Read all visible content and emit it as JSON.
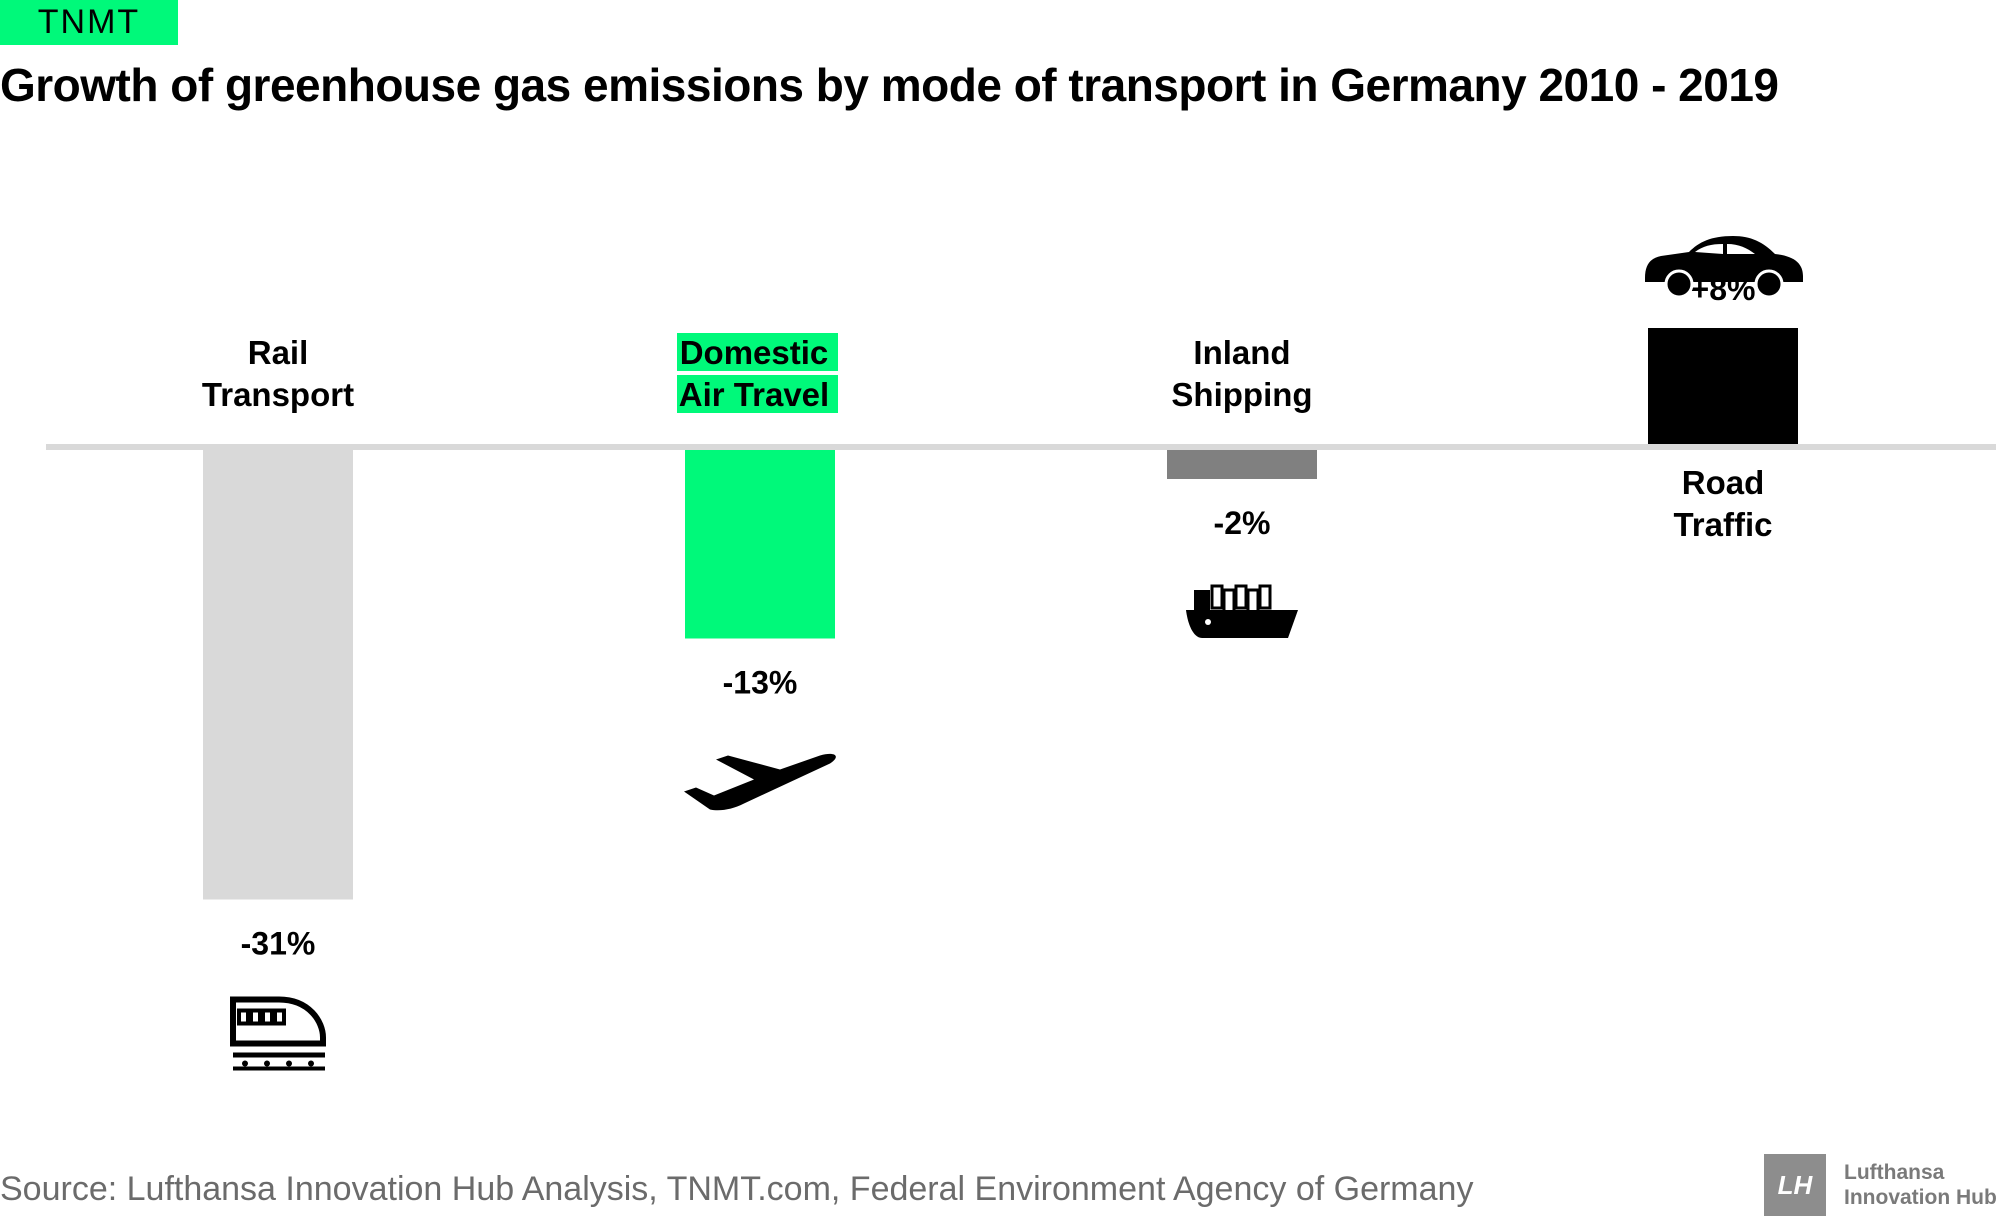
{
  "logo": {
    "text": "TNMT",
    "color": "#00f97a"
  },
  "title": "Growth of greenhouse gas emissions by mode of transport in Germany 2010 - 2019",
  "chart_data": {
    "type": "bar",
    "title": "Growth of greenhouse gas emissions by mode of transport in Germany 2010 - 2019",
    "unit": "%",
    "categories": [
      [
        "Rail",
        "Transport"
      ],
      [
        "Domestic",
        "Air Travel"
      ],
      [
        "Inland",
        "Shipping"
      ],
      [
        "Road",
        "Traffic"
      ]
    ],
    "values": [
      -31,
      -13,
      -2,
      8
    ],
    "value_labels": [
      "-31%",
      "-13%",
      "-2%",
      "+8%"
    ],
    "colors": [
      "#d9d9d9",
      "#00f97a",
      "#808080",
      "#000000"
    ],
    "icons": [
      "train-icon",
      "airplane-icon",
      "ship-icon",
      "car-icon"
    ],
    "highlight_category": 1,
    "baseline_color": "#d9d9d9"
  },
  "source": "Source: Lufthansa Innovation Hub Analysis, TNMT.com, Federal Environment Agency of Germany",
  "brand": {
    "mark": "LH",
    "line1": "Lufthansa",
    "line2": "Innovation Hub"
  }
}
